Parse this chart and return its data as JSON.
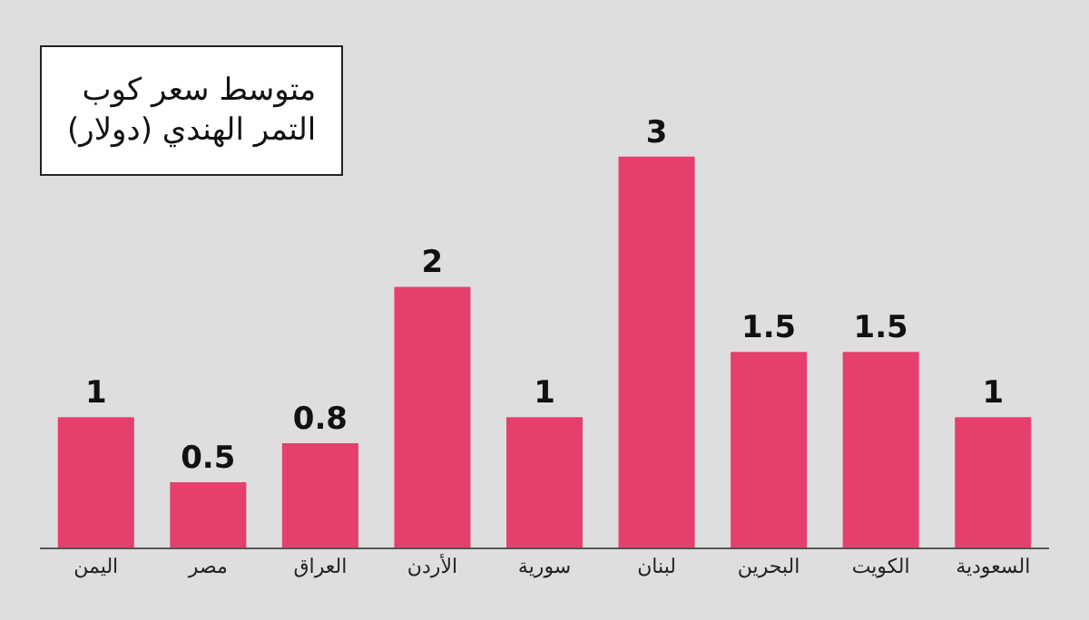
{
  "chart_data": {
    "type": "bar",
    "title": "متوسط سعر كوب\nالتمر الهندي (دولار)",
    "categories": [
      "اليمن",
      "مصر",
      "العراق",
      "الأردن",
      "سورية",
      "لبنان",
      "البحرين",
      "الكويت",
      "السعودية"
    ],
    "values": [
      1,
      0.5,
      0.8,
      2,
      1,
      3,
      1.5,
      1.5,
      1
    ],
    "color": "#e5406c",
    "data_labels": true,
    "grid": false,
    "legend": false
  }
}
